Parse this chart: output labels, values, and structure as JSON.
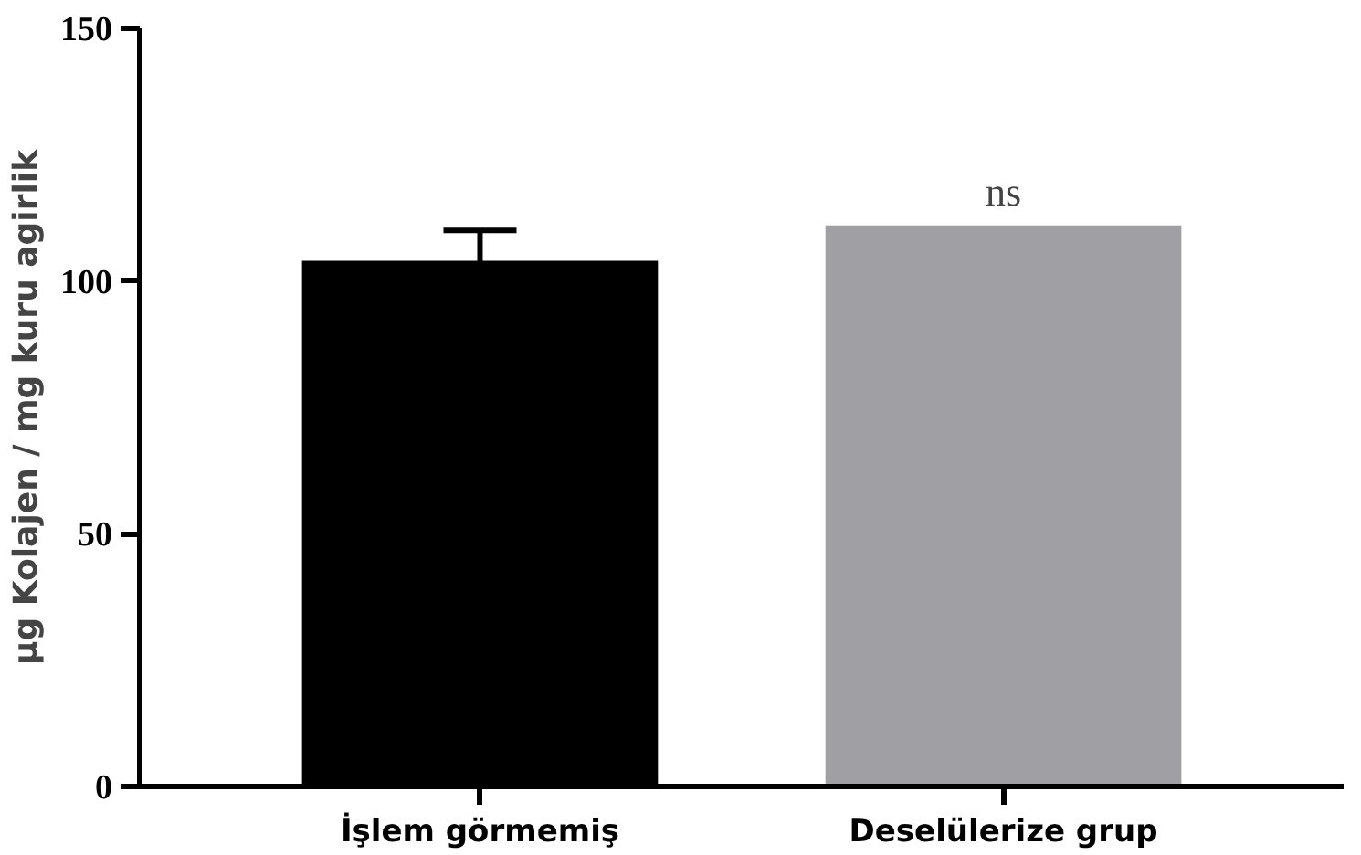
{
  "chart_data": {
    "type": "bar",
    "ylabel": "µg Kolajen / mg kuru agirlik",
    "categories": [
      "İşlem görmemiş",
      "Deselülerize grup"
    ],
    "values": [
      104,
      111
    ],
    "colors": [
      "#000000",
      "#a0a0a4"
    ],
    "errors": [
      6,
      null
    ],
    "ylim": [
      0,
      150
    ],
    "yticks": [
      0,
      50,
      100,
      150
    ],
    "annotations": [
      {
        "text": "ns",
        "x": "Deselülerize grup",
        "y": 111
      }
    ],
    "grid": false
  }
}
